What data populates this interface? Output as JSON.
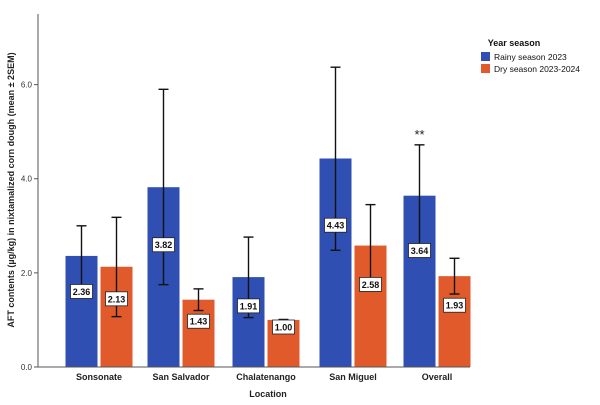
{
  "chart_data": {
    "type": "bar",
    "xlabel": "Location",
    "ylabel": "AFT contents (µg/kg) in nixtamalized corn dough (mean ± 2SEM)",
    "ylim": [
      0,
      7.5
    ],
    "yticks": [
      "0.0",
      "2.0",
      "4.0",
      "6.0"
    ],
    "ytick_values": [
      0,
      2,
      4,
      6
    ],
    "categories": [
      "Sonsonate",
      "San Salvador",
      "Chalatenango",
      "San Miguel",
      "Overall"
    ],
    "legend": {
      "title": "Year season",
      "placement": "top-right"
    },
    "series": [
      {
        "name": "Rainy season 2023",
        "color": "#2f4fb3",
        "values": [
          2.36,
          3.82,
          1.91,
          4.43,
          3.64
        ],
        "labels": [
          "2.36",
          "3.82",
          "1.91",
          "4.43",
          "3.64"
        ],
        "err_low": [
          1.72,
          1.75,
          1.05,
          2.48,
          2.55
        ],
        "err_high": [
          3.0,
          5.9,
          2.76,
          6.37,
          4.72
        ]
      },
      {
        "name": "Dry season 2023-2024",
        "color": "#e05a2b",
        "values": [
          2.13,
          1.43,
          1.0,
          2.58,
          1.93
        ],
        "labels": [
          "2.13",
          "1.43",
          "1.00",
          "2.58",
          "1.93"
        ],
        "err_low": [
          1.07,
          1.2,
          0.99,
          1.72,
          1.55
        ],
        "err_high": [
          3.18,
          1.66,
          1.01,
          3.45,
          2.31
        ]
      }
    ],
    "annotations": [
      {
        "text": "**",
        "category": "Overall",
        "series": 0
      }
    ],
    "grid": false
  }
}
